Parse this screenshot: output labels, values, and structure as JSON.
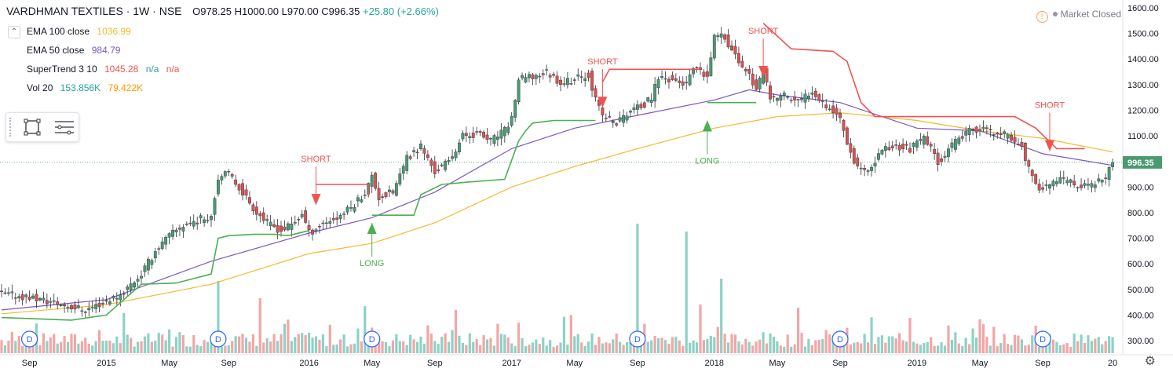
{
  "header": {
    "symbol": "VARDHMAN TEXTILES · 1W · NSE",
    "ohlc": "O978.25 H1000.00 L970.00 C996.35",
    "change": "+25.80 (+2.66%)"
  },
  "legend": [
    {
      "label": "EMA 100 close",
      "value": "1036.99",
      "color": "#f5b82e"
    },
    {
      "label": "EMA 50 close",
      "value": "984.79",
      "color": "#7e57c2"
    },
    {
      "label": "SuperTrend 3 10",
      "value": "1045.28",
      "extra1": "n/a",
      "extra2": "n/a",
      "color": "#ef5350",
      "extra_color": "#26a69a"
    },
    {
      "label": "Vol 20",
      "value": "153.856K",
      "extra1": "79.422K",
      "color": "#26a69a",
      "extra_color": "#ff9800"
    }
  ],
  "status": {
    "market": "Market Closed",
    "warning_icon": "exclamation-icon"
  },
  "toolbar": {
    "icons": [
      "rectangle-tool-icon",
      "object-tree-icon"
    ]
  },
  "colors": {
    "up": "#4a9a72",
    "down": "#d9534f",
    "ema100": "#f5b82e",
    "ema50": "#7e57c2",
    "st_up": "#4caf50",
    "st_down": "#ef5350",
    "vol_up": "#8fd1c5",
    "vol_down": "#f2a6a6"
  },
  "chart_data": {
    "type": "candlestick",
    "title": "VARDHMAN TEXTILES · 1W · NSE",
    "ylim": [
      280,
      1620
    ],
    "y_ticks": [
      300,
      400,
      500,
      600,
      700,
      800,
      900,
      1000,
      1100,
      1200,
      1300,
      1400,
      1500,
      1600
    ],
    "y_tick_labels": [
      "300.00",
      "400.00",
      "500.00",
      "600.00",
      "700.00",
      "800.00",
      "900.00",
      "1000.00",
      "1100.00",
      "1200.00",
      "1300.00",
      "1400.00",
      "1500.00",
      "1600.00"
    ],
    "last_price_label": "996.35",
    "last_price": 996.35,
    "x_labels": [
      "Sep",
      "2015",
      "May",
      "Sep",
      "2016",
      "May",
      "Sep",
      "2017",
      "May",
      "Sep",
      "2018",
      "May",
      "Sep",
      "2019",
      "May",
      "Sep",
      "20"
    ],
    "x_label_weeks": [
      8,
      30,
      48,
      65,
      88,
      106,
      124,
      146,
      164,
      182,
      204,
      222,
      240,
      262,
      280,
      298,
      318
    ],
    "week_range": [
      0,
      320
    ],
    "close_path": [
      [
        0,
        482
      ],
      [
        8,
        470
      ],
      [
        16,
        445
      ],
      [
        24,
        420
      ],
      [
        30,
        455
      ],
      [
        34,
        480
      ],
      [
        40,
        560
      ],
      [
        44,
        650
      ],
      [
        48,
        710
      ],
      [
        52,
        750
      ],
      [
        56,
        770
      ],
      [
        60,
        790
      ],
      [
        62,
        940
      ],
      [
        65,
        950
      ],
      [
        68,
        900
      ],
      [
        72,
        820
      ],
      [
        76,
        760
      ],
      [
        80,
        730
      ],
      [
        84,
        760
      ],
      [
        86,
        800
      ],
      [
        88,
        720
      ],
      [
        92,
        760
      ],
      [
        96,
        780
      ],
      [
        100,
        820
      ],
      [
        104,
        880
      ],
      [
        106,
        940
      ],
      [
        108,
        860
      ],
      [
        112,
        880
      ],
      [
        116,
        1010
      ],
      [
        120,
        1060
      ],
      [
        124,
        960
      ],
      [
        128,
        1000
      ],
      [
        132,
        1100
      ],
      [
        136,
        1110
      ],
      [
        140,
        1080
      ],
      [
        144,
        1120
      ],
      [
        146,
        1170
      ],
      [
        148,
        1320
      ],
      [
        152,
        1330
      ],
      [
        156,
        1350
      ],
      [
        160,
        1310
      ],
      [
        164,
        1320
      ],
      [
        168,
        1340
      ],
      [
        170,
        1240
      ],
      [
        172,
        1180
      ],
      [
        176,
        1150
      ],
      [
        180,
        1200
      ],
      [
        184,
        1220
      ],
      [
        186,
        1250
      ],
      [
        188,
        1330
      ],
      [
        192,
        1320
      ],
      [
        196,
        1300
      ],
      [
        198,
        1360
      ],
      [
        202,
        1330
      ],
      [
        204,
        1480
      ],
      [
        206,
        1510
      ],
      [
        210,
        1410
      ],
      [
        214,
        1340
      ],
      [
        216,
        1280
      ],
      [
        218,
        1350
      ],
      [
        220,
        1240
      ],
      [
        224,
        1260
      ],
      [
        228,
        1230
      ],
      [
        232,
        1280
      ],
      [
        236,
        1220
      ],
      [
        240,
        1170
      ],
      [
        242,
        1080
      ],
      [
        244,
        1000
      ],
      [
        248,
        950
      ],
      [
        252,
        1050
      ],
      [
        256,
        1060
      ],
      [
        260,
        1050
      ],
      [
        264,
        1090
      ],
      [
        266,
        1050
      ],
      [
        268,
        1000
      ],
      [
        272,
        1060
      ],
      [
        276,
        1110
      ],
      [
        280,
        1130
      ],
      [
        284,
        1110
      ],
      [
        288,
        1100
      ],
      [
        292,
        1060
      ],
      [
        294,
        970
      ],
      [
        296,
        900
      ],
      [
        300,
        910
      ],
      [
        304,
        930
      ],
      [
        308,
        900
      ],
      [
        312,
        910
      ],
      [
        316,
        930
      ],
      [
        318,
        996.35
      ]
    ],
    "ema100_path": [
      [
        0,
        405
      ],
      [
        30,
        440
      ],
      [
        60,
        520
      ],
      [
        88,
        640
      ],
      [
        106,
        680
      ],
      [
        124,
        760
      ],
      [
        146,
        900
      ],
      [
        164,
        980
      ],
      [
        182,
        1050
      ],
      [
        204,
        1130
      ],
      [
        222,
        1175
      ],
      [
        240,
        1190
      ],
      [
        262,
        1160
      ],
      [
        280,
        1120
      ],
      [
        298,
        1090
      ],
      [
        318,
        1036.99
      ]
    ],
    "ema50_path": [
      [
        0,
        420
      ],
      [
        30,
        460
      ],
      [
        60,
        610
      ],
      [
        88,
        720
      ],
      [
        106,
        780
      ],
      [
        124,
        880
      ],
      [
        146,
        1050
      ],
      [
        164,
        1130
      ],
      [
        182,
        1180
      ],
      [
        204,
        1240
      ],
      [
        214,
        1280
      ],
      [
        222,
        1260
      ],
      [
        240,
        1230
      ],
      [
        262,
        1130
      ],
      [
        280,
        1120
      ],
      [
        298,
        1030
      ],
      [
        318,
        984.79
      ]
    ],
    "supertrend_segments": [
      {
        "trend": "up",
        "points": [
          [
            0,
            390
          ],
          [
            20,
            380
          ],
          [
            30,
            400
          ],
          [
            40,
            520
          ],
          [
            50,
            525
          ],
          [
            60,
            560
          ],
          [
            62,
            700
          ],
          [
            65,
            710
          ],
          [
            72,
            715
          ],
          [
            78,
            715
          ],
          [
            82,
            710
          ],
          [
            88,
            730
          ]
        ]
      },
      {
        "trend": "down",
        "points": [
          [
            90,
            910
          ],
          [
            105,
            910
          ],
          [
            105,
            860
          ]
        ]
      },
      {
        "trend": "up",
        "points": [
          [
            106,
            790
          ],
          [
            118,
            790
          ],
          [
            120,
            870
          ],
          [
            126,
            910
          ],
          [
            134,
            920
          ],
          [
            144,
            930
          ],
          [
            148,
            1080
          ],
          [
            150,
            1120
          ],
          [
            152,
            1150
          ],
          [
            158,
            1160
          ],
          [
            170,
            1160
          ]
        ]
      },
      {
        "trend": "down",
        "points": [
          [
            172,
            1310
          ],
          [
            174,
            1360
          ],
          [
            190,
            1360
          ],
          [
            200,
            1360
          ]
        ]
      },
      {
        "trend": "up",
        "points": [
          [
            202,
            1230
          ],
          [
            208,
            1230
          ],
          [
            216,
            1230
          ]
        ]
      },
      {
        "trend": "down",
        "points": [
          [
            218,
            1540
          ],
          [
            222,
            1490
          ],
          [
            226,
            1440
          ],
          [
            238,
            1430
          ],
          [
            242,
            1390
          ],
          [
            246,
            1230
          ],
          [
            250,
            1175
          ],
          [
            270,
            1175
          ],
          [
            290,
            1175
          ],
          [
            296,
            1130
          ],
          [
            302,
            1050
          ],
          [
            310,
            1050
          ]
        ]
      }
    ],
    "signals": [
      {
        "type": "SHORT",
        "week": 90,
        "price": 830
      },
      {
        "type": "LONG",
        "week": 106,
        "price": 760
      },
      {
        "type": "SHORT",
        "week": 172,
        "price": 1210
      },
      {
        "type": "LONG",
        "week": 202,
        "price": 1160
      },
      {
        "type": "SHORT",
        "week": 218,
        "price": 1330
      },
      {
        "type": "SHORT",
        "week": 300,
        "price": 1040
      }
    ],
    "volume_spikes": [
      [
        62,
        92
      ],
      [
        74,
        70
      ],
      [
        104,
        60
      ],
      [
        130,
        55
      ],
      [
        182,
        165
      ],
      [
        196,
        155
      ],
      [
        200,
        62
      ],
      [
        206,
        95
      ],
      [
        228,
        58
      ],
      [
        260,
        45
      ],
      [
        296,
        35
      ]
    ],
    "dividend_weeks": [
      8,
      62,
      106,
      182,
      240,
      298
    ]
  }
}
